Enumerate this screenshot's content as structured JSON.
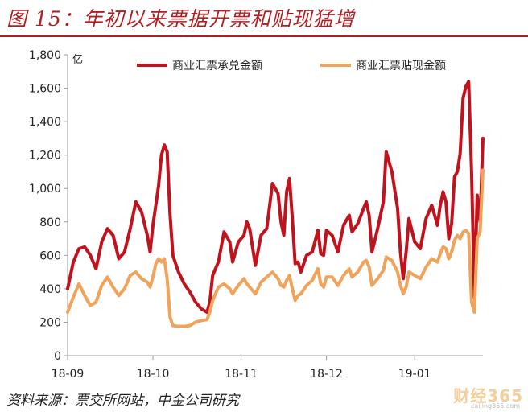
{
  "figure": {
    "title": "图 15：年初以来票据开票和贴现猛增",
    "source": "资料来源：票交所网站，中金公司研究",
    "watermark": "财经365",
    "watermark_url": "caijing365.com"
  },
  "colors": {
    "accent": "#b01e23",
    "series_acceptance": "#c0131d",
    "series_discount": "#f0a35a",
    "axis": "#999999"
  },
  "chart_data": {
    "type": "line",
    "title": "",
    "unit_label": "亿",
    "xlabel": "",
    "ylabel": "",
    "ylim": [
      0,
      1800
    ],
    "yticks": [
      0,
      200,
      400,
      600,
      800,
      "1,000",
      "1,200",
      "1,400",
      "1,600",
      "1,800"
    ],
    "ytick_values": [
      0,
      200,
      400,
      600,
      800,
      1000,
      1200,
      1400,
      1600,
      1800
    ],
    "xlim": [
      "2018-09-01",
      "2019-01-25"
    ],
    "xticks": [
      {
        "label": "18-09",
        "date": "2018-09-01"
      },
      {
        "label": "18-10",
        "date": "2018-10-01"
      },
      {
        "label": "18-11",
        "date": "2018-11-01"
      },
      {
        "label": "18-12",
        "date": "2018-12-01"
      },
      {
        "label": "19-01",
        "date": "2019-01-01"
      }
    ],
    "legend_position": "top",
    "grid": false,
    "series": [
      {
        "name": "商业汇票承兑金额",
        "points": [
          [
            "2018-09-01",
            400
          ],
          [
            "2018-09-03",
            560
          ],
          [
            "2018-09-05",
            640
          ],
          [
            "2018-09-07",
            650
          ],
          [
            "2018-09-09",
            600
          ],
          [
            "2018-09-11",
            520
          ],
          [
            "2018-09-13",
            680
          ],
          [
            "2018-09-15",
            760
          ],
          [
            "2018-09-17",
            720
          ],
          [
            "2018-09-19",
            580
          ],
          [
            "2018-09-21",
            620
          ],
          [
            "2018-09-23",
            760
          ],
          [
            "2018-09-25",
            920
          ],
          [
            "2018-09-27",
            860
          ],
          [
            "2018-09-29",
            720
          ],
          [
            "2018-09-30",
            620
          ],
          [
            "2018-10-01",
            780
          ],
          [
            "2018-10-02",
            900
          ],
          [
            "2018-10-03",
            1020
          ],
          [
            "2018-10-04",
            1200
          ],
          [
            "2018-10-05",
            1260
          ],
          [
            "2018-10-06",
            1220
          ],
          [
            "2018-10-07",
            850
          ],
          [
            "2018-10-08",
            600
          ],
          [
            "2018-10-10",
            500
          ],
          [
            "2018-10-12",
            430
          ],
          [
            "2018-10-14",
            380
          ],
          [
            "2018-10-16",
            320
          ],
          [
            "2018-10-18",
            280
          ],
          [
            "2018-10-20",
            260
          ],
          [
            "2018-10-21",
            320
          ],
          [
            "2018-10-22",
            480
          ],
          [
            "2018-10-24",
            560
          ],
          [
            "2018-10-26",
            740
          ],
          [
            "2018-10-28",
            680
          ],
          [
            "2018-10-29",
            560
          ],
          [
            "2018-10-31",
            680
          ],
          [
            "2018-11-02",
            720
          ],
          [
            "2018-11-03",
            800
          ],
          [
            "2018-11-04",
            760
          ],
          [
            "2018-11-06",
            540
          ],
          [
            "2018-11-08",
            720
          ],
          [
            "2018-11-10",
            760
          ],
          [
            "2018-11-12",
            1030
          ],
          [
            "2018-11-14",
            970
          ],
          [
            "2018-11-15",
            800
          ],
          [
            "2018-11-16",
            720
          ],
          [
            "2018-11-17",
            980
          ],
          [
            "2018-11-18",
            1060
          ],
          [
            "2018-11-19",
            820
          ],
          [
            "2018-11-20",
            550
          ],
          [
            "2018-11-21",
            560
          ],
          [
            "2018-11-22",
            500
          ],
          [
            "2018-11-24",
            600
          ],
          [
            "2018-11-26",
            620
          ],
          [
            "2018-11-28",
            750
          ],
          [
            "2018-11-29",
            610
          ],
          [
            "2018-11-30",
            600
          ],
          [
            "2018-12-01",
            750
          ],
          [
            "2018-12-03",
            720
          ],
          [
            "2018-12-05",
            620
          ],
          [
            "2018-12-07",
            780
          ],
          [
            "2018-12-09",
            840
          ],
          [
            "2018-12-10",
            740
          ],
          [
            "2018-12-12",
            790
          ],
          [
            "2018-12-14",
            880
          ],
          [
            "2018-12-15",
            920
          ],
          [
            "2018-12-16",
            840
          ],
          [
            "2018-12-17",
            620
          ],
          [
            "2018-12-19",
            760
          ],
          [
            "2018-12-21",
            920
          ],
          [
            "2018-12-22",
            1220
          ],
          [
            "2018-12-24",
            1100
          ],
          [
            "2018-12-26",
            880
          ],
          [
            "2018-12-27",
            620
          ],
          [
            "2018-12-28",
            460
          ],
          [
            "2018-12-29",
            620
          ],
          [
            "2018-12-30",
            820
          ],
          [
            "2019-01-01",
            680
          ],
          [
            "2019-01-03",
            640
          ],
          [
            "2019-01-05",
            820
          ],
          [
            "2019-01-07",
            900
          ],
          [
            "2019-01-09",
            780
          ],
          [
            "2019-01-10",
            900
          ],
          [
            "2019-01-11",
            980
          ],
          [
            "2019-01-12",
            920
          ],
          [
            "2019-01-13",
            700
          ],
          [
            "2019-01-14",
            790
          ],
          [
            "2019-01-15",
            1070
          ],
          [
            "2019-01-16",
            1100
          ],
          [
            "2019-01-17",
            1210
          ],
          [
            "2019-01-18",
            1540
          ],
          [
            "2019-01-19",
            1610
          ],
          [
            "2019-01-20",
            1640
          ],
          [
            "2019-01-21",
            1100
          ],
          [
            "2019-01-22",
            350
          ],
          [
            "2019-01-23",
            960
          ],
          [
            "2019-01-24",
            800
          ],
          [
            "2019-01-25",
            1300
          ]
        ]
      },
      {
        "name": "商业汇票贴现金额",
        "points": [
          [
            "2018-09-01",
            260
          ],
          [
            "2018-09-03",
            350
          ],
          [
            "2018-09-05",
            430
          ],
          [
            "2018-09-07",
            360
          ],
          [
            "2018-09-09",
            300
          ],
          [
            "2018-09-11",
            320
          ],
          [
            "2018-09-13",
            420
          ],
          [
            "2018-09-15",
            470
          ],
          [
            "2018-09-17",
            410
          ],
          [
            "2018-09-19",
            360
          ],
          [
            "2018-09-21",
            400
          ],
          [
            "2018-09-23",
            480
          ],
          [
            "2018-09-25",
            500
          ],
          [
            "2018-09-27",
            460
          ],
          [
            "2018-09-29",
            440
          ],
          [
            "2018-09-30",
            410
          ],
          [
            "2018-10-01",
            470
          ],
          [
            "2018-10-02",
            550
          ],
          [
            "2018-10-03",
            580
          ],
          [
            "2018-10-04",
            560
          ],
          [
            "2018-10-05",
            580
          ],
          [
            "2018-10-06",
            460
          ],
          [
            "2018-10-07",
            230
          ],
          [
            "2018-10-08",
            180
          ],
          [
            "2018-10-10",
            175
          ],
          [
            "2018-10-12",
            175
          ],
          [
            "2018-10-14",
            180
          ],
          [
            "2018-10-16",
            200
          ],
          [
            "2018-10-18",
            210
          ],
          [
            "2018-10-20",
            215
          ],
          [
            "2018-10-21",
            260
          ],
          [
            "2018-10-22",
            330
          ],
          [
            "2018-10-24",
            410
          ],
          [
            "2018-10-26",
            430
          ],
          [
            "2018-10-28",
            400
          ],
          [
            "2018-10-29",
            370
          ],
          [
            "2018-10-31",
            420
          ],
          [
            "2018-11-02",
            460
          ],
          [
            "2018-11-03",
            430
          ],
          [
            "2018-11-04",
            410
          ],
          [
            "2018-11-06",
            370
          ],
          [
            "2018-11-08",
            440
          ],
          [
            "2018-11-10",
            470
          ],
          [
            "2018-11-12",
            500
          ],
          [
            "2018-11-14",
            460
          ],
          [
            "2018-11-15",
            420
          ],
          [
            "2018-11-16",
            410
          ],
          [
            "2018-11-17",
            450
          ],
          [
            "2018-11-18",
            480
          ],
          [
            "2018-11-19",
            400
          ],
          [
            "2018-11-20",
            330
          ],
          [
            "2018-11-21",
            360
          ],
          [
            "2018-11-22",
            370
          ],
          [
            "2018-11-24",
            420
          ],
          [
            "2018-11-26",
            450
          ],
          [
            "2018-11-28",
            520
          ],
          [
            "2018-11-29",
            430
          ],
          [
            "2018-11-30",
            410
          ],
          [
            "2018-12-01",
            470
          ],
          [
            "2018-12-03",
            470
          ],
          [
            "2018-12-05",
            420
          ],
          [
            "2018-12-07",
            480
          ],
          [
            "2018-12-09",
            520
          ],
          [
            "2018-12-10",
            470
          ],
          [
            "2018-12-12",
            500
          ],
          [
            "2018-12-14",
            560
          ],
          [
            "2018-12-15",
            570
          ],
          [
            "2018-12-16",
            530
          ],
          [
            "2018-12-17",
            420
          ],
          [
            "2018-12-19",
            460
          ],
          [
            "2018-12-21",
            510
          ],
          [
            "2018-12-22",
            590
          ],
          [
            "2018-12-24",
            570
          ],
          [
            "2018-12-26",
            500
          ],
          [
            "2018-12-27",
            420
          ],
          [
            "2018-12-28",
            370
          ],
          [
            "2018-12-29",
            410
          ],
          [
            "2018-12-30",
            500
          ],
          [
            "2019-01-01",
            480
          ],
          [
            "2019-01-03",
            460
          ],
          [
            "2019-01-05",
            530
          ],
          [
            "2019-01-07",
            580
          ],
          [
            "2019-01-09",
            560
          ],
          [
            "2019-01-10",
            610
          ],
          [
            "2019-01-11",
            650
          ],
          [
            "2019-01-12",
            640
          ],
          [
            "2019-01-13",
            580
          ],
          [
            "2019-01-14",
            620
          ],
          [
            "2019-01-15",
            690
          ],
          [
            "2019-01-16",
            720
          ],
          [
            "2019-01-17",
            700
          ],
          [
            "2019-01-18",
            740
          ],
          [
            "2019-01-19",
            750
          ],
          [
            "2019-01-20",
            730
          ],
          [
            "2019-01-21",
            320
          ],
          [
            "2019-01-22",
            260
          ],
          [
            "2019-01-23",
            700
          ],
          [
            "2019-01-24",
            740
          ],
          [
            "2019-01-25",
            1110
          ]
        ]
      }
    ]
  }
}
